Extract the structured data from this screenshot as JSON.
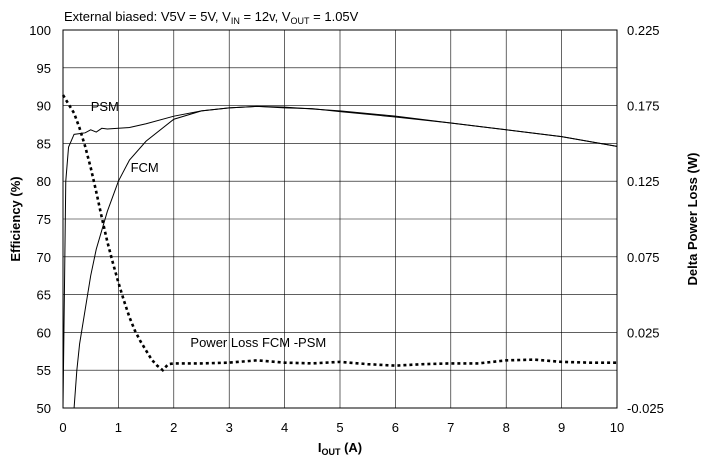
{
  "chart_data": {
    "type": "line",
    "title": {
      "prefix": "External biased: V5V = 5V, V",
      "vin_sub": "IN",
      "vin_val": " = 12v, V",
      "vout_sub": "OUT",
      "vout_val": " = 1.05V"
    },
    "xlabel": {
      "main": "I",
      "sub": "OUT",
      "rest": " (A)"
    },
    "ylabel_left": "Efficiency (%)",
    "ylabel_right": "Delta Power Loss (W)",
    "xlim": [
      0,
      10
    ],
    "ylim_left": [
      50,
      100
    ],
    "ylim_right": [
      -0.025,
      0.225
    ],
    "x_ticks": [
      "0",
      "1",
      "2",
      "3",
      "4",
      "5",
      "6",
      "7",
      "8",
      "9",
      "10"
    ],
    "y_left_ticks": [
      "50",
      "55",
      "60",
      "65",
      "70",
      "75",
      "80",
      "85",
      "90",
      "95",
      "100"
    ],
    "y_right_ticks": [
      "-0.025",
      "0.025",
      "0.075",
      "0.125",
      "0.175",
      "0.225"
    ],
    "grid": true,
    "colors": {
      "line": "#000000",
      "grid": "#000000"
    },
    "series": [
      {
        "name": "PSM",
        "axis": "left",
        "style": "solid",
        "points": [
          [
            0.0,
            50
          ],
          [
            0.05,
            80
          ],
          [
            0.1,
            84.5
          ],
          [
            0.2,
            86.2
          ],
          [
            0.3,
            86.3
          ],
          [
            0.4,
            86.4
          ],
          [
            0.5,
            86.8
          ],
          [
            0.6,
            86.5
          ],
          [
            0.7,
            87.0
          ],
          [
            0.8,
            86.9
          ],
          [
            1.0,
            87.0
          ],
          [
            1.2,
            87.1
          ],
          [
            1.5,
            87.6
          ],
          [
            2.0,
            88.6
          ],
          [
            2.5,
            89.3
          ],
          [
            3.0,
            89.7
          ],
          [
            3.5,
            89.9
          ],
          [
            4.0,
            89.7
          ],
          [
            4.5,
            89.6
          ],
          [
            5.0,
            89.2
          ],
          [
            6.0,
            88.5
          ],
          [
            7.0,
            87.7
          ],
          [
            8.0,
            86.8
          ],
          [
            9.0,
            85.9
          ],
          [
            10.0,
            84.6
          ]
        ]
      },
      {
        "name": "FCM",
        "axis": "left",
        "style": "solid",
        "points": [
          [
            0.2,
            50
          ],
          [
            0.25,
            55
          ],
          [
            0.3,
            58.5
          ],
          [
            0.4,
            63
          ],
          [
            0.5,
            67.5
          ],
          [
            0.6,
            71
          ],
          [
            0.8,
            76
          ],
          [
            1.0,
            80
          ],
          [
            1.2,
            82.8
          ],
          [
            1.5,
            85.3
          ],
          [
            2.0,
            88.2
          ],
          [
            2.5,
            89.3
          ],
          [
            3.0,
            89.7
          ],
          [
            3.5,
            89.9
          ],
          [
            4.0,
            89.8
          ],
          [
            5.0,
            89.3
          ],
          [
            6.0,
            88.6
          ],
          [
            7.0,
            87.7
          ],
          [
            8.0,
            86.8
          ],
          [
            9.0,
            85.9
          ],
          [
            10.0,
            84.6
          ]
        ]
      },
      {
        "name": "Power Loss FCM -PSM",
        "axis": "right",
        "style": "dotted",
        "points": [
          [
            0.0,
            0.182
          ],
          [
            0.1,
            0.176
          ],
          [
            0.2,
            0.17
          ],
          [
            0.3,
            0.16
          ],
          [
            0.4,
            0.148
          ],
          [
            0.5,
            0.134
          ],
          [
            0.6,
            0.118
          ],
          [
            0.7,
            0.101
          ],
          [
            0.8,
            0.085
          ],
          [
            0.9,
            0.071
          ],
          [
            1.0,
            0.058
          ],
          [
            1.1,
            0.046
          ],
          [
            1.2,
            0.035
          ],
          [
            1.3,
            0.026
          ],
          [
            1.4,
            0.019
          ],
          [
            1.5,
            0.013
          ],
          [
            1.6,
            0.007
          ],
          [
            1.7,
            0.003
          ],
          [
            1.8,
            0.0
          ],
          [
            1.9,
            0.004
          ],
          [
            2.0,
            0.0045
          ],
          [
            2.5,
            0.0045
          ],
          [
            3.0,
            0.005
          ],
          [
            3.5,
            0.0065
          ],
          [
            4.0,
            0.005
          ],
          [
            4.5,
            0.0045
          ],
          [
            5.0,
            0.0055
          ],
          [
            5.5,
            0.004
          ],
          [
            6.0,
            0.003
          ],
          [
            6.5,
            0.004
          ],
          [
            7.0,
            0.0045
          ],
          [
            7.5,
            0.0045
          ],
          [
            8.0,
            0.0065
          ],
          [
            8.5,
            0.007
          ],
          [
            9.0,
            0.0055
          ],
          [
            9.5,
            0.005
          ],
          [
            10.0,
            0.005
          ]
        ]
      }
    ],
    "annotations": [
      {
        "text": "PSM",
        "x": 0.5,
        "y": 89.3,
        "axis": "left"
      },
      {
        "text": "FCM",
        "x": 1.22,
        "y": 81.2,
        "axis": "left"
      },
      {
        "text": "Power Loss FCM -PSM",
        "x": 2.3,
        "y": 0.0155,
        "axis": "right"
      }
    ]
  }
}
